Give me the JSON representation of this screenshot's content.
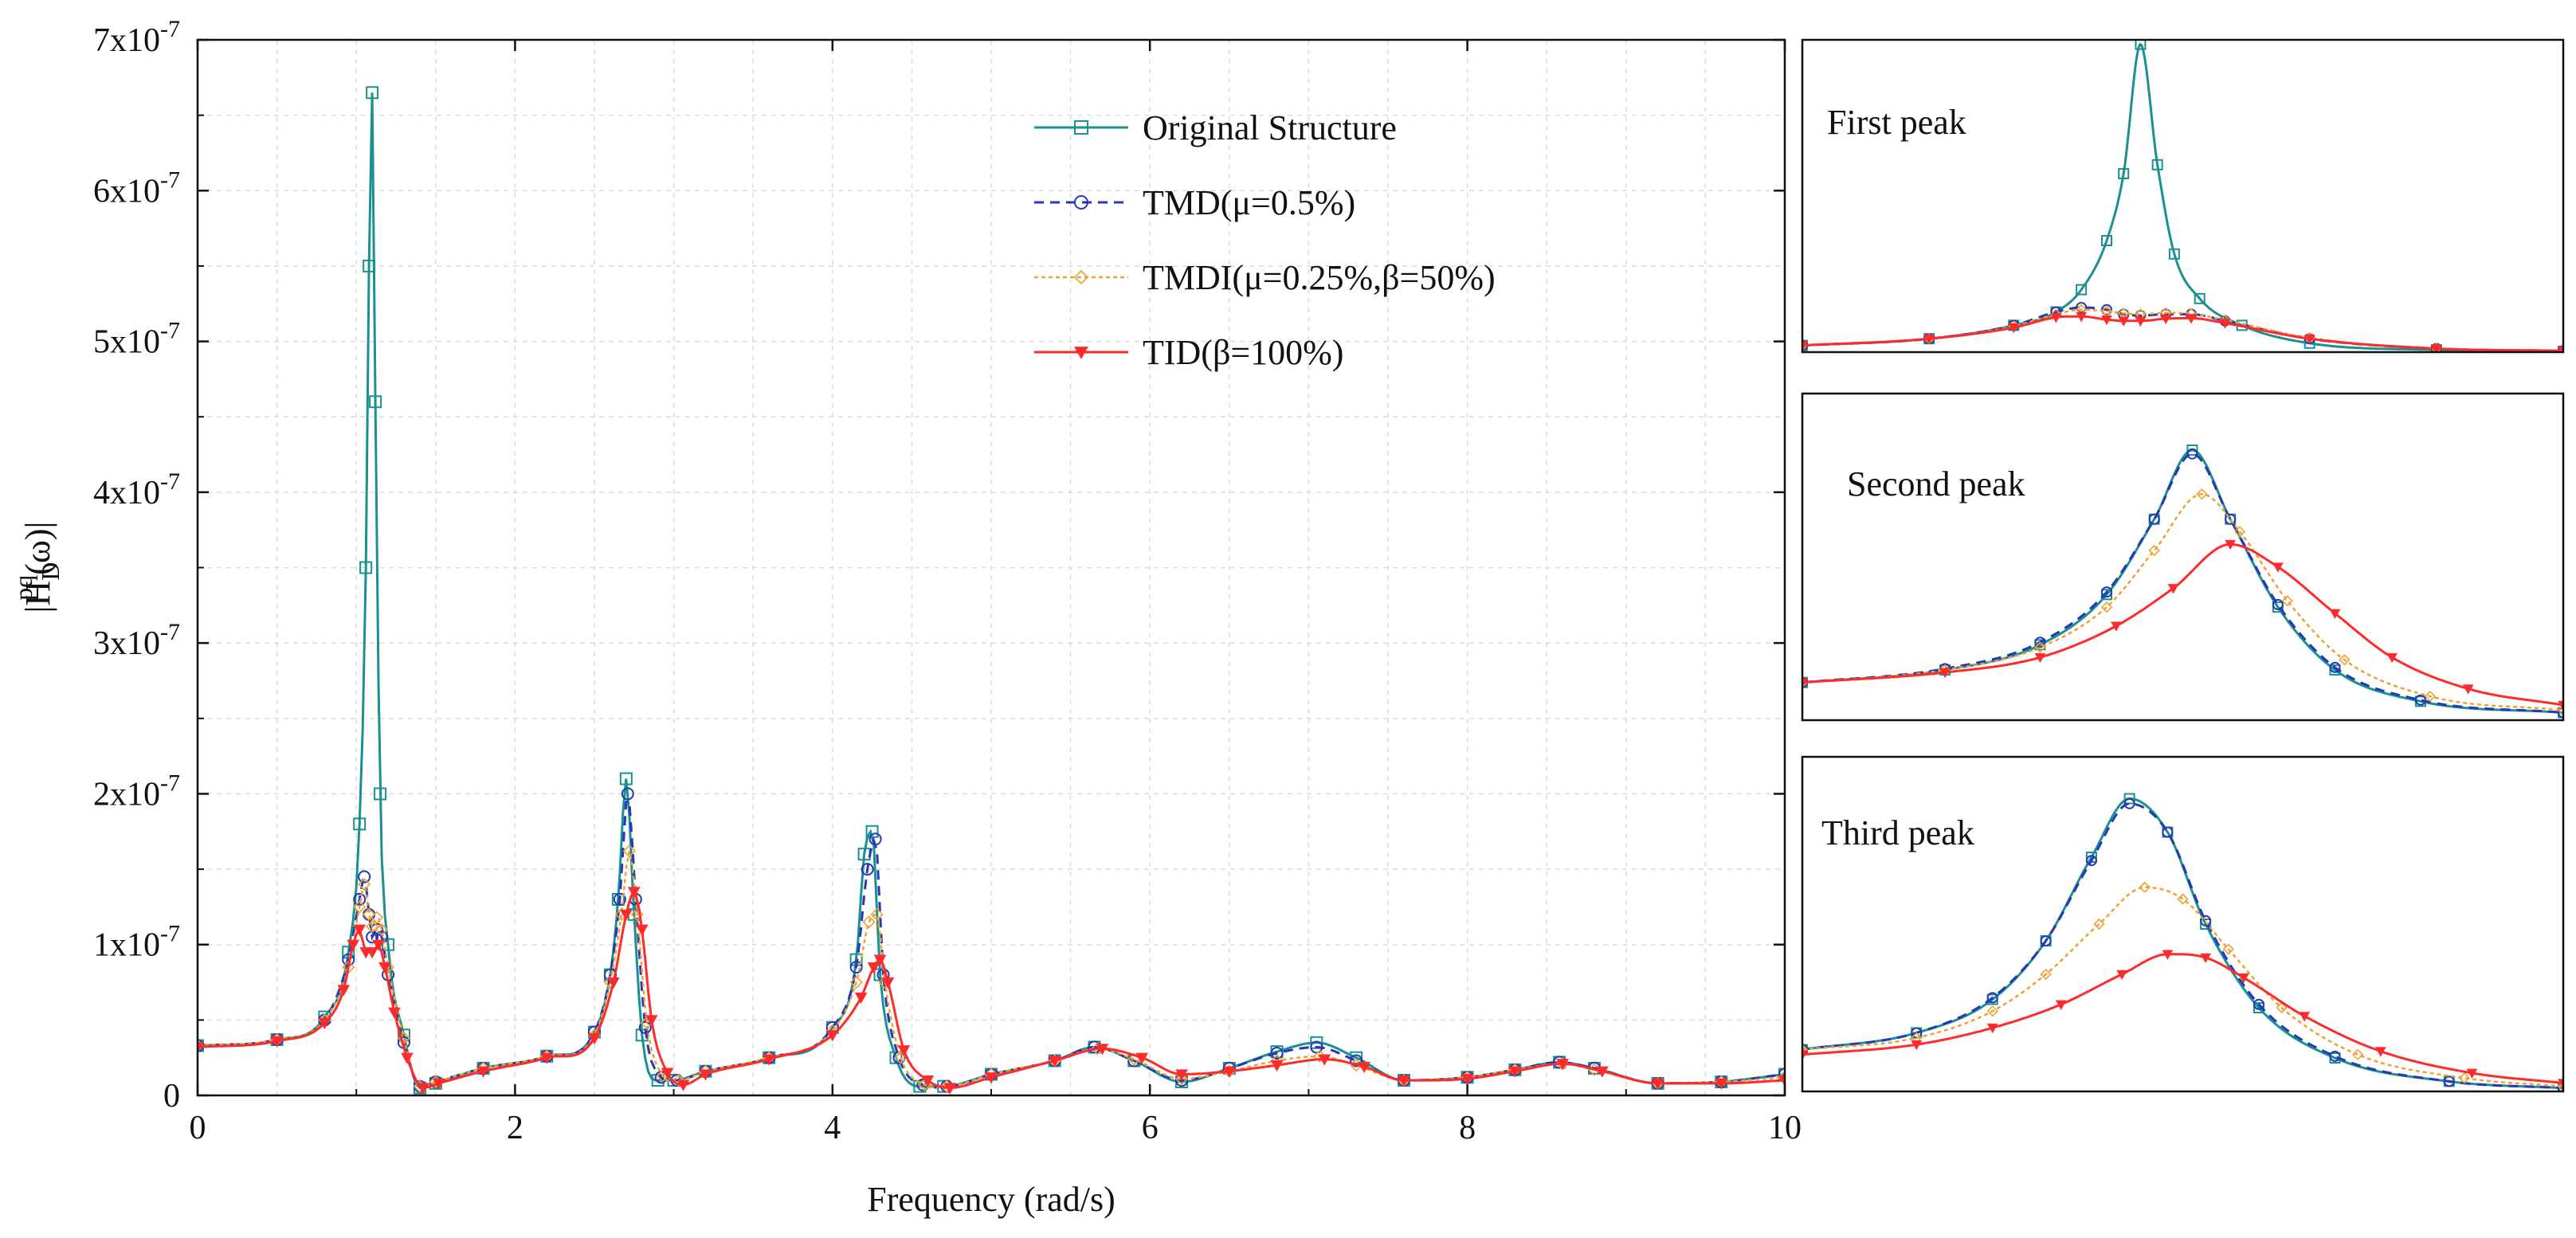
{
  "chart_data": [
    {
      "panel": "main",
      "type": "line",
      "xlabel": "Frequency (rad/s)",
      "ylabel": "|H_D^pq(ω)|",
      "ylabel_base": "|H",
      "ylabel_sub": "D",
      "ylabel_sup": "pq",
      "ylabel_tail": "(ω)|",
      "xlim": [
        0,
        10
      ],
      "ylim": [
        0,
        7e-07
      ],
      "grid": true,
      "legend_position": "top-right",
      "x_ticks": [
        0,
        2,
        4,
        6,
        8,
        10
      ],
      "x_tick_labels": [
        "0",
        "2",
        "4",
        "6",
        "8",
        "10"
      ],
      "y_ticks": [
        0,
        1e-07,
        2e-07,
        3e-07,
        4e-07,
        5e-07,
        6e-07,
        7e-07
      ],
      "y_tick_labels": [
        "0",
        "1x10",
        "2x10",
        "3x10",
        "4x10",
        "5x10",
        "6x10",
        "7x10"
      ],
      "y_tick_exponent": "-7",
      "series": [
        {
          "name": "Original Structure",
          "color": "#1a9090",
          "marker": "square",
          "dash": "solid",
          "x": [
            0,
            0.5,
            0.8,
            0.95,
            1.02,
            1.06,
            1.08,
            1.1,
            1.12,
            1.15,
            1.2,
            1.3,
            1.4,
            1.5,
            1.8,
            2.2,
            2.5,
            2.6,
            2.65,
            2.7,
            2.75,
            2.8,
            2.9,
            3.0,
            3.2,
            3.6,
            4.0,
            4.15,
            4.2,
            4.25,
            4.3,
            4.4,
            4.55,
            4.7,
            5.0,
            5.4,
            5.65,
            5.9,
            6.2,
            6.5,
            6.8,
            7.05,
            7.3,
            7.6,
            8.0,
            8.3,
            8.58,
            8.8,
            9.2,
            9.6,
            10.0
          ],
          "values": [
            3.3e-08,
            3.7e-08,
            5.2e-08,
            9.5e-08,
            1.8e-07,
            3.5e-07,
            5.5e-07,
            6.65e-07,
            4.6e-07,
            2e-07,
            1e-07,
            4e-08,
            5e-09,
            8e-09,
            1.8e-08,
            2.6e-08,
            4.2e-08,
            8e-08,
            1.3e-07,
            2.1e-07,
            1.2e-07,
            4e-08,
            1e-08,
            1e-08,
            1.6e-08,
            2.5e-08,
            4.5e-08,
            9e-08,
            1.6e-07,
            1.75e-07,
            8e-08,
            2.5e-08,
            6e-09,
            6e-09,
            1.4e-08,
            2.3e-08,
            3.2e-08,
            2.3e-08,
            9e-09,
            1.8e-08,
            2.9e-08,
            3.5e-08,
            2.5e-08,
            1e-08,
            1.2e-08,
            1.7e-08,
            2.2e-08,
            1.8e-08,
            8e-09,
            9e-09,
            1.4e-08
          ]
        },
        {
          "name": "TMD(μ=0.5%)",
          "color": "#2438b8",
          "marker": "circle",
          "dash": "dashed",
          "x": [
            0,
            0.5,
            0.8,
            0.95,
            1.02,
            1.05,
            1.08,
            1.1,
            1.13,
            1.16,
            1.2,
            1.3,
            1.4,
            1.5,
            1.8,
            2.2,
            2.5,
            2.6,
            2.66,
            2.71,
            2.76,
            2.82,
            2.92,
            3.02,
            3.2,
            3.6,
            4.0,
            4.15,
            4.22,
            4.27,
            4.32,
            4.42,
            4.57,
            4.72,
            5.0,
            5.4,
            5.65,
            5.9,
            6.2,
            6.5,
            6.8,
            7.05,
            7.3,
            7.6,
            8.0,
            8.3,
            8.58,
            8.8,
            9.2,
            9.6,
            10.0
          ],
          "values": [
            3.3e-08,
            3.7e-08,
            5e-08,
            9e-08,
            1.3e-07,
            1.45e-07,
            1.2e-07,
            1.05e-07,
            1.1e-07,
            1.05e-07,
            8e-08,
            3.5e-08,
            6e-09,
            9e-09,
            1.8e-08,
            2.6e-08,
            4.2e-08,
            8e-08,
            1.3e-07,
            2e-07,
            1.3e-07,
            4.5e-08,
            1.2e-08,
            1e-08,
            1.6e-08,
            2.5e-08,
            4.5e-08,
            8.5e-08,
            1.5e-07,
            1.7e-07,
            8e-08,
            2.5e-08,
            7e-09,
            6e-09,
            1.4e-08,
            2.3e-08,
            3.2e-08,
            2.3e-08,
            1e-08,
            1.8e-08,
            2.8e-08,
            3.2e-08,
            2.3e-08,
            1e-08,
            1.2e-08,
            1.7e-08,
            2.2e-08,
            1.8e-08,
            8e-09,
            9e-09,
            1.4e-08
          ]
        },
        {
          "name": "TMDI(μ=0.25%,β=50%)",
          "color": "#f0a030",
          "marker": "diamond",
          "dash": "dotted",
          "x": [
            0,
            0.5,
            0.8,
            0.95,
            1.02,
            1.05,
            1.08,
            1.1,
            1.13,
            1.16,
            1.2,
            1.3,
            1.4,
            1.5,
            1.8,
            2.2,
            2.5,
            2.6,
            2.67,
            2.72,
            2.77,
            2.83,
            2.93,
            3.03,
            3.2,
            3.6,
            4.0,
            4.15,
            4.23,
            4.28,
            4.33,
            4.43,
            4.58,
            4.72,
            5.0,
            5.4,
            5.67,
            5.9,
            6.2,
            6.5,
            6.8,
            7.07,
            7.3,
            7.6,
            8.0,
            8.3,
            8.6,
            8.8,
            9.2,
            9.6,
            10.0
          ],
          "values": [
            3.3e-08,
            3.7e-08,
            5e-08,
            8.5e-08,
            1.25e-07,
            1.4e-07,
            1.2e-07,
            1.12e-07,
            1.18e-07,
            1.1e-07,
            8.5e-08,
            3.8e-08,
            6e-09,
            9e-09,
            1.8e-08,
            2.6e-08,
            4e-08,
            7.5e-08,
            1.2e-07,
            1.62e-07,
            1.2e-07,
            4.8e-08,
            1.3e-08,
            1e-08,
            1.6e-08,
            2.5e-08,
            4.3e-08,
            7.5e-08,
            1.15e-07,
            1.2e-07,
            7.5e-08,
            2.5e-08,
            7e-09,
            6e-09,
            1.4e-08,
            2.3e-08,
            3.1e-08,
            2.4e-08,
            1.1e-08,
            1.6e-08,
            2.3e-08,
            2.6e-08,
            2e-08,
            1e-08,
            1.2e-08,
            1.7e-08,
            2.1e-08,
            1.7e-08,
            8e-09,
            9e-09,
            1.2e-08
          ]
        },
        {
          "name": "TID(β=100%)",
          "color": "#ff2a2a",
          "marker": "triangle-down",
          "dash": "solid",
          "x": [
            0,
            0.5,
            0.8,
            0.92,
            0.98,
            1.02,
            1.06,
            1.1,
            1.14,
            1.18,
            1.24,
            1.32,
            1.42,
            1.52,
            1.8,
            2.2,
            2.5,
            2.62,
            2.7,
            2.75,
            2.8,
            2.86,
            2.96,
            3.06,
            3.2,
            3.6,
            4.0,
            4.18,
            4.26,
            4.3,
            4.35,
            4.45,
            4.6,
            4.74,
            5.0,
            5.4,
            5.7,
            5.95,
            6.2,
            6.5,
            6.8,
            7.1,
            7.35,
            7.6,
            8.0,
            8.3,
            8.6,
            8.85,
            9.2,
            9.6,
            10.0
          ],
          "values": [
            3.2e-08,
            3.6e-08,
            4.8e-08,
            7e-08,
            1e-07,
            1.1e-07,
            9.5e-08,
            9.5e-08,
            1e-07,
            8.5e-08,
            5.5e-08,
            2.5e-08,
            5e-09,
            8e-09,
            1.6e-08,
            2.5e-08,
            3.8e-08,
            7.5e-08,
            1.2e-07,
            1.35e-07,
            1.1e-07,
            5e-08,
            1.5e-08,
            7e-09,
            1.4e-08,
            2.4e-08,
            4e-08,
            6.5e-08,
            8.5e-08,
            9e-08,
            7.5e-08,
            3e-08,
            1e-08,
            5e-09,
            1.2e-08,
            2.3e-08,
            3.1e-08,
            2.5e-08,
            1.4e-08,
            1.6e-08,
            2e-08,
            2.4e-08,
            1.9e-08,
            1e-08,
            1.1e-08,
            1.6e-08,
            2.1e-08,
            1.6e-08,
            8e-09,
            8e-09,
            1e-08
          ]
        }
      ]
    },
    {
      "panel": "inset-first-peak",
      "type": "line",
      "title": "First peak",
      "xlim": [
        0.7,
        1.6
      ],
      "ylim": [
        0,
        7e-07
      ],
      "series": [
        {
          "name": "Original Structure",
          "x": [
            0.7,
            0.85,
            0.95,
            1.0,
            1.03,
            1.06,
            1.08,
            1.1,
            1.12,
            1.14,
            1.17,
            1.22,
            1.3,
            1.45,
            1.6
          ],
          "values": [
            1.5e-08,
            3e-08,
            6e-08,
            9e-08,
            1.4e-07,
            2.5e-07,
            4e-07,
            6.9e-07,
            4.2e-07,
            2.2e-07,
            1.2e-07,
            6e-08,
            2e-08,
            5e-09,
            2e-09
          ]
        },
        {
          "name": "TMD(μ=0.5%)",
          "x": [
            0.7,
            0.85,
            0.95,
            1.0,
            1.03,
            1.06,
            1.08,
            1.1,
            1.13,
            1.16,
            1.2,
            1.3,
            1.45,
            1.6
          ],
          "values": [
            1.5e-08,
            3e-08,
            6e-08,
            9e-08,
            1e-07,
            9.5e-08,
            8.5e-08,
            8.2e-08,
            8.5e-08,
            8.5e-08,
            7e-08,
            3e-08,
            8e-09,
            3e-09
          ]
        },
        {
          "name": "TMDI(μ=0.25%,β=50%)",
          "x": [
            0.7,
            0.85,
            0.95,
            1.0,
            1.03,
            1.06,
            1.08,
            1.1,
            1.13,
            1.16,
            1.2,
            1.3,
            1.45,
            1.6
          ],
          "values": [
            1.5e-08,
            3e-08,
            5.8e-08,
            8.5e-08,
            9.5e-08,
            9.2e-08,
            8.7e-08,
            8.5e-08,
            8.8e-08,
            8.6e-08,
            7.2e-08,
            3.2e-08,
            8e-09,
            3e-09
          ]
        },
        {
          "name": "TID(β=100%)",
          "x": [
            0.7,
            0.85,
            0.95,
            1.0,
            1.03,
            1.06,
            1.08,
            1.1,
            1.13,
            1.16,
            1.2,
            1.3,
            1.45,
            1.6
          ],
          "values": [
            1.5e-08,
            3e-08,
            5.5e-08,
            7.8e-08,
            8e-08,
            7.3e-08,
            7e-08,
            7e-08,
            7.5e-08,
            7.6e-08,
            6.5e-08,
            3e-08,
            8e-09,
            3e-09
          ]
        }
      ]
    },
    {
      "panel": "inset-second-peak",
      "type": "line",
      "title": "Second peak",
      "xlim": [
        2.3,
        3.1
      ],
      "ylim": [
        0,
        2.6e-07
      ],
      "series": [
        {
          "name": "Original Structure",
          "x": [
            2.3,
            2.45,
            2.55,
            2.62,
            2.67,
            2.71,
            2.75,
            2.8,
            2.86,
            2.95,
            3.1
          ],
          "values": [
            3e-08,
            4e-08,
            6e-08,
            1e-07,
            1.6e-07,
            2.15e-07,
            1.6e-07,
            9e-08,
            4e-08,
            1.5e-08,
            6e-09
          ]
        },
        {
          "name": "TMD(μ=0.5%)",
          "x": [
            2.3,
            2.45,
            2.55,
            2.62,
            2.67,
            2.71,
            2.75,
            2.8,
            2.86,
            2.95,
            3.1
          ],
          "values": [
            3e-08,
            4.1e-08,
            6.2e-08,
            1.02e-07,
            1.6e-07,
            2.12e-07,
            1.6e-07,
            9.2e-08,
            4.2e-08,
            1.6e-08,
            6e-09
          ]
        },
        {
          "name": "TMDI(μ=0.25%,β=50%)",
          "x": [
            2.3,
            2.45,
            2.55,
            2.62,
            2.67,
            2.72,
            2.76,
            2.81,
            2.87,
            2.96,
            3.1
          ],
          "values": [
            3e-08,
            4e-08,
            5.8e-08,
            9e-08,
            1.35e-07,
            1.8e-07,
            1.5e-07,
            9.5e-08,
            4.8e-08,
            1.9e-08,
            8e-09
          ]
        },
        {
          "name": "TID(β=100%)",
          "x": [
            2.3,
            2.45,
            2.55,
            2.63,
            2.69,
            2.75,
            2.8,
            2.86,
            2.92,
            3.0,
            3.1
          ],
          "values": [
            3e-08,
            3.8e-08,
            5e-08,
            7.5e-08,
            1.05e-07,
            1.4e-07,
            1.22e-07,
            8.5e-08,
            5e-08,
            2.5e-08,
            1.2e-08
          ]
        }
      ]
    },
    {
      "panel": "inset-third-peak",
      "type": "line",
      "title": "Third peak",
      "xlim": [
        3.8,
        4.8
      ],
      "ylim": [
        0,
        2e-07
      ],
      "series": [
        {
          "name": "Original Structure",
          "x": [
            3.8,
            3.95,
            4.05,
            4.12,
            4.18,
            4.23,
            4.28,
            4.33,
            4.4,
            4.5,
            4.65,
            4.8
          ],
          "values": [
            2.5e-08,
            3.5e-08,
            5.5e-08,
            9e-08,
            1.4e-07,
            1.75e-07,
            1.55e-07,
            1e-07,
            5e-08,
            2e-08,
            6e-09,
            2e-09
          ]
        },
        {
          "name": "TMD(μ=0.5%)",
          "x": [
            3.8,
            3.95,
            4.05,
            4.12,
            4.18,
            4.23,
            4.28,
            4.33,
            4.4,
            4.5,
            4.65,
            4.8
          ],
          "values": [
            2.5e-08,
            3.5e-08,
            5.6e-08,
            9e-08,
            1.38e-07,
            1.72e-07,
            1.55e-07,
            1.02e-07,
            5.2e-08,
            2.1e-08,
            6e-09,
            2e-09
          ]
        },
        {
          "name": "TMDI(μ=0.25%,β=50%)",
          "x": [
            3.8,
            3.95,
            4.05,
            4.12,
            4.19,
            4.25,
            4.3,
            4.36,
            4.43,
            4.53,
            4.67,
            4.8
          ],
          "values": [
            2.5e-08,
            3.2e-08,
            4.8e-08,
            7e-08,
            1e-07,
            1.22e-07,
            1.15e-07,
            8.5e-08,
            5e-08,
            2.2e-08,
            8e-09,
            3e-09
          ]
        },
        {
          "name": "TID(β=100%)",
          "x": [
            3.8,
            3.95,
            4.05,
            4.14,
            4.22,
            4.28,
            4.33,
            4.38,
            4.46,
            4.56,
            4.68,
            4.8
          ],
          "values": [
            2.2e-08,
            2.8e-08,
            3.8e-08,
            5.2e-08,
            7e-08,
            8.2e-08,
            8e-08,
            6.8e-08,
            4.5e-08,
            2.4e-08,
            1.1e-08,
            5e-09
          ]
        }
      ]
    }
  ]
}
